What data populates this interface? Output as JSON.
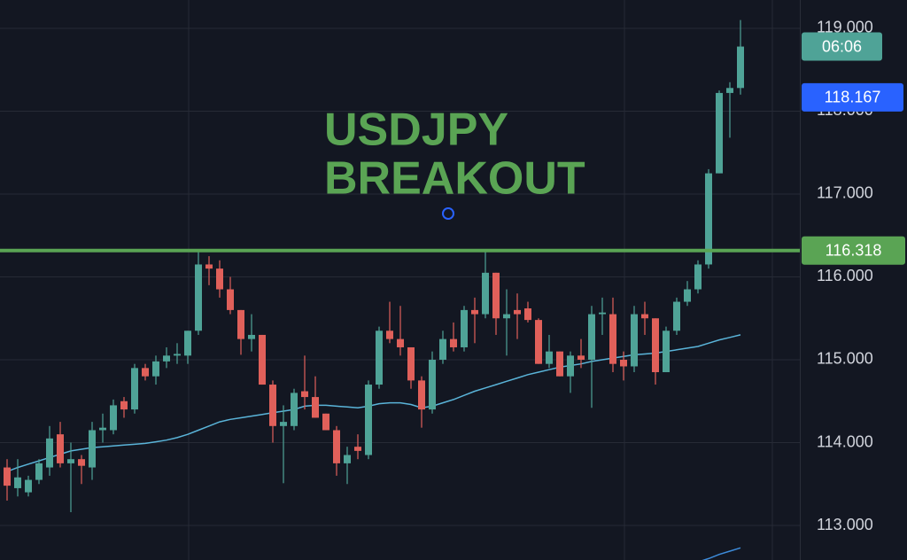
{
  "chart_data": {
    "type": "candlestick",
    "annotation": [
      "USDJPY",
      "BREAKOUT"
    ],
    "annotation_color": "#5aa454",
    "ylim": [
      112.583,
      119.342
    ],
    "yticks": [
      {
        "value": 113,
        "label": "113.000"
      },
      {
        "value": 114,
        "label": "114.000"
      },
      {
        "value": 115,
        "label": "115.000"
      },
      {
        "value": 116,
        "label": "116.000"
      },
      {
        "value": 117,
        "label": "117.000"
      },
      {
        "value": 118,
        "label": "118.000"
      },
      {
        "value": 119,
        "label": "119.000"
      }
    ],
    "grid": true,
    "up_color": "#4fa397",
    "down_color": "#e0605a",
    "open": [
      113.7,
      113.45,
      113.4,
      113.55,
      113.7,
      114.1,
      113.75,
      113.8,
      113.7,
      114.15,
      114.15,
      114.5,
      114.4,
      114.9,
      114.8,
      114.98,
      115.05,
      115.05,
      115.35,
      116.15,
      116.1,
      115.85,
      115.6,
      115.25,
      115.3,
      114.7,
      114.2,
      114.2,
      114.62,
      114.55,
      114.35,
      114.15,
      113.75,
      113.95,
      113.85,
      114.7,
      115.35,
      115.25,
      115.15,
      114.75,
      114.4,
      115.0,
      115.25,
      115.15,
      115.6,
      115.55,
      116.05,
      115.5,
      115.6,
      115.62,
      115.48,
      114.95,
      115.1,
      114.8,
      115.05,
      115.0,
      115.55,
      115.55,
      115.0,
      114.92,
      115.55,
      115.5,
      114.85,
      115.35,
      115.7,
      115.85,
      116.15,
      117.25,
      118.22,
      118.28
    ],
    "high": [
      113.8,
      113.8,
      113.6,
      113.8,
      114.2,
      114.25,
      114.0,
      113.85,
      114.25,
      114.35,
      114.52,
      114.55,
      114.95,
      114.95,
      115.05,
      115.15,
      115.2,
      115.35,
      116.3,
      116.25,
      116.2,
      116.0,
      115.6,
      115.55,
      115.3,
      114.75,
      114.45,
      114.65,
      115.05,
      114.8,
      114.35,
      114.2,
      113.95,
      114.1,
      114.75,
      115.4,
      115.7,
      115.65,
      115.15,
      114.8,
      115.1,
      115.35,
      115.45,
      115.65,
      115.75,
      116.3,
      116.05,
      115.85,
      115.8,
      115.7,
      115.5,
      115.3,
      115.1,
      115.1,
      115.25,
      115.65,
      115.75,
      115.75,
      115.1,
      115.65,
      115.7,
      115.5,
      115.4,
      115.75,
      115.95,
      116.2,
      117.3,
      118.25,
      118.35,
      119.1
    ],
    "low": [
      113.3,
      113.35,
      113.35,
      113.5,
      113.6,
      113.7,
      113.16,
      113.5,
      113.55,
      114.0,
      114.1,
      114.3,
      114.35,
      114.75,
      114.7,
      114.9,
      114.95,
      114.95,
      115.3,
      115.9,
      115.75,
      115.55,
      115.06,
      115.1,
      114.7,
      114.0,
      113.51,
      114.15,
      114.4,
      114.3,
      114.15,
      113.6,
      113.5,
      113.8,
      113.8,
      114.65,
      115.2,
      115.05,
      114.65,
      114.18,
      114.35,
      114.95,
      115.1,
      115.1,
      115.2,
      115.5,
      115.3,
      115.05,
      115.25,
      115.45,
      114.95,
      114.9,
      114.8,
      114.6,
      114.9,
      114.42,
      115.3,
      114.85,
      114.75,
      114.85,
      115.3,
      114.7,
      114.85,
      115.3,
      115.65,
      115.8,
      116.1,
      117.25,
      117.68,
      118.2
    ],
    "close": [
      113.48,
      113.58,
      113.55,
      113.75,
      114.05,
      113.75,
      113.8,
      113.72,
      114.15,
      114.18,
      114.45,
      114.4,
      114.9,
      114.8,
      114.98,
      115.05,
      115.07,
      115.35,
      116.15,
      116.1,
      115.85,
      115.6,
      115.25,
      115.3,
      114.7,
      114.2,
      114.25,
      114.6,
      114.55,
      114.3,
      114.15,
      113.75,
      113.85,
      113.9,
      114.7,
      115.35,
      115.25,
      115.15,
      114.75,
      114.4,
      115.0,
      115.25,
      115.15,
      115.6,
      115.55,
      116.05,
      115.5,
      115.55,
      115.55,
      115.48,
      114.95,
      115.1,
      114.8,
      115.05,
      115.0,
      115.55,
      115.57,
      114.95,
      114.92,
      115.55,
      115.5,
      114.85,
      115.35,
      115.7,
      115.85,
      116.15,
      117.25,
      118.22,
      118.28,
      118.78
    ],
    "lines": [
      {
        "color": "#5ab4d9",
        "values": [
          113.65,
          113.7,
          113.74,
          113.78,
          113.82,
          113.86,
          113.9,
          113.92,
          113.94,
          113.95,
          113.96,
          113.97,
          113.98,
          113.99,
          114.01,
          114.03,
          114.06,
          114.1,
          114.15,
          114.2,
          114.25,
          114.28,
          114.3,
          114.32,
          114.34,
          114.36,
          114.38,
          114.4,
          114.44,
          114.45,
          114.45,
          114.44,
          114.43,
          114.42,
          114.44,
          114.47,
          114.48,
          114.48,
          114.46,
          114.42,
          114.44,
          114.48,
          114.52,
          114.57,
          114.62,
          114.66,
          114.7,
          114.74,
          114.78,
          114.82,
          114.85,
          114.88,
          114.91,
          114.93,
          114.95,
          114.98,
          115.0,
          115.02,
          115.04,
          115.06,
          115.07,
          115.08,
          115.1,
          115.12,
          115.14,
          115.16,
          115.2,
          115.24,
          115.27,
          115.3
        ]
      },
      {
        "color": "#3d8bd9",
        "values": [
          null,
          null,
          null,
          null,
          null,
          null,
          null,
          null,
          null,
          null,
          null,
          null,
          null,
          null,
          null,
          null,
          null,
          null,
          null,
          null,
          null,
          null,
          null,
          null,
          null,
          null,
          null,
          null,
          null,
          null,
          null,
          null,
          null,
          null,
          null,
          null,
          null,
          null,
          null,
          null,
          null,
          null,
          null,
          null,
          null,
          null,
          null,
          null,
          null,
          null,
          null,
          null,
          null,
          null,
          null,
          null,
          null,
          null,
          null,
          null,
          null,
          null,
          null,
          null,
          112.52,
          112.56,
          112.6,
          112.65,
          112.69,
          112.73
        ]
      }
    ],
    "level": 116.318,
    "level_color": "#5aa454",
    "countdown": "06:06",
    "price_label": 118.167,
    "price_label_color": "#2962ff"
  }
}
